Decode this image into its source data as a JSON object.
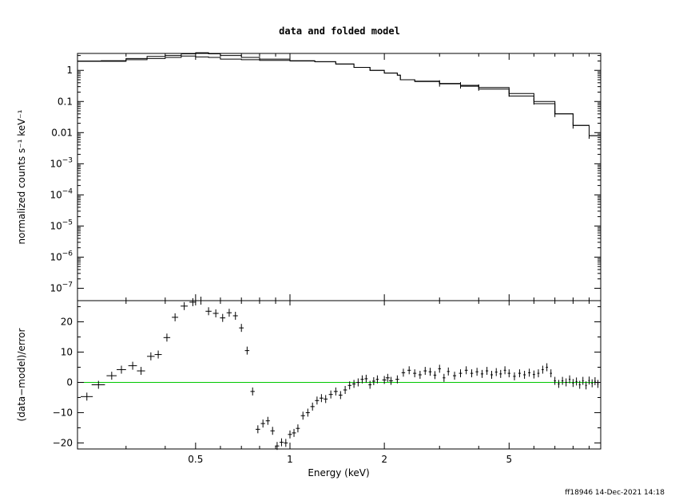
{
  "chart_data": [
    {
      "type": "line",
      "panel": "top",
      "title": "data and folded model",
      "ylabel": "normalized counts s⁻¹ keV⁻¹",
      "yscale": "log",
      "xscale": "log",
      "xlim": [
        0.21,
        9.8
      ],
      "ylim": [
        4e-08,
        3.5
      ],
      "ytick_labels": [
        {
          "value": 1,
          "label": "1"
        },
        {
          "value": 0.1,
          "label": "0.1"
        },
        {
          "value": 0.01,
          "label": "0.01"
        },
        {
          "value": 0.001,
          "base": "10",
          "exp": "−3"
        },
        {
          "value": 0.0001,
          "base": "10",
          "exp": "−4"
        },
        {
          "value": 1e-05,
          "base": "10",
          "exp": "−5"
        },
        {
          "value": 1e-06,
          "base": "10",
          "exp": "−6"
        },
        {
          "value": 1e-07,
          "base": "10",
          "exp": "−7"
        }
      ],
      "series": [
        {
          "x": [
            0.21,
            0.25,
            0.3,
            0.35,
            0.4,
            0.45,
            0.5,
            0.55,
            0.6,
            0.7,
            0.8,
            1.0,
            1.2,
            1.4,
            1.6,
            1.8,
            2.0,
            2.2,
            2.25,
            2.5,
            3.0,
            3.5,
            4.0,
            5.0,
            6.0,
            7.0,
            8.0,
            9.0,
            9.8
          ],
          "y": [
            1.95,
            1.95,
            2.2,
            2.4,
            2.6,
            2.9,
            2.7,
            2.6,
            2.3,
            2.2,
            2.1,
            2.0,
            1.9,
            1.6,
            1.25,
            1.0,
            0.82,
            0.7,
            0.5,
            0.44,
            0.37,
            0.31,
            0.25,
            0.15,
            0.085,
            0.04,
            0.017,
            0.008,
            0.0045
          ]
        },
        {
          "x": [
            0.21,
            0.25,
            0.3,
            0.35,
            0.4,
            0.45,
            0.5,
            0.55,
            0.6,
            0.7,
            0.8,
            1.0,
            1.2,
            1.4,
            1.6,
            1.8,
            2.0,
            2.2,
            2.25,
            2.5,
            3.0,
            3.5,
            4.0,
            5.0,
            6.0,
            7.0,
            8.0,
            9.0,
            9.8
          ],
          "y": [
            2.0,
            2.05,
            2.4,
            2.8,
            3.0,
            3.4,
            3.7,
            3.4,
            3.0,
            2.6,
            2.3,
            2.05,
            1.9,
            1.6,
            1.25,
            1.0,
            0.82,
            0.7,
            0.5,
            0.45,
            0.38,
            0.33,
            0.28,
            0.18,
            0.1,
            0.04,
            0.017,
            0.008,
            0.004
          ]
        }
      ]
    },
    {
      "type": "scatter",
      "panel": "bottom",
      "xlabel": "Energy (keV)",
      "ylabel": "(data−model)/error",
      "xscale": "log",
      "xlim": [
        0.21,
        9.8
      ],
      "ylim": [
        -22,
        27
      ],
      "x_ticks": [
        {
          "value": 0.5,
          "label": "0.5"
        },
        {
          "value": 1,
          "label": "1"
        },
        {
          "value": 2,
          "label": "2"
        },
        {
          "value": 5,
          "label": "5"
        }
      ],
      "y_ticks": [
        {
          "value": 20,
          "label": "20"
        },
        {
          "value": 10,
          "label": "10"
        },
        {
          "value": 0,
          "label": "0"
        },
        {
          "value": -10,
          "label": "−10"
        },
        {
          "value": -20,
          "label": "−20"
        }
      ],
      "reference_line": 0,
      "points": [
        {
          "x": 0.225,
          "y": -4.7,
          "xe": 0.01
        },
        {
          "x": 0.245,
          "y": -0.8,
          "xe": 0.012
        },
        {
          "x": 0.27,
          "y": 2.2,
          "xe": 0.01
        },
        {
          "x": 0.29,
          "y": 4.2,
          "xe": 0.01
        },
        {
          "x": 0.315,
          "y": 5.5,
          "xe": 0.01
        },
        {
          "x": 0.335,
          "y": 3.8,
          "xe": 0.01
        },
        {
          "x": 0.36,
          "y": 8.6,
          "xe": 0.01
        },
        {
          "x": 0.38,
          "y": 9.2,
          "xe": 0.01
        },
        {
          "x": 0.405,
          "y": 14.8,
          "xe": 0.01
        },
        {
          "x": 0.43,
          "y": 21.5,
          "xe": 0.01
        },
        {
          "x": 0.46,
          "y": 25.2,
          "xe": 0.012
        },
        {
          "x": 0.49,
          "y": 26.5,
          "xe": 0.012
        },
        {
          "x": 0.52,
          "y": 27.0,
          "xe": 0.012
        },
        {
          "x": 0.55,
          "y": 23.5,
          "xe": 0.012
        },
        {
          "x": 0.58,
          "y": 22.8,
          "xe": 0.012
        },
        {
          "x": 0.61,
          "y": 21.3,
          "xe": 0.012
        },
        {
          "x": 0.64,
          "y": 23.0,
          "xe": 0.012
        },
        {
          "x": 0.67,
          "y": 22.0,
          "xe": 0.012
        },
        {
          "x": 0.7,
          "y": 18.0,
          "xe": 0.012
        },
        {
          "x": 0.73,
          "y": 10.5,
          "xe": 0.012
        },
        {
          "x": 0.76,
          "y": -3.0,
          "xe": 0.012
        },
        {
          "x": 0.79,
          "y": -15.5,
          "xe": 0.013
        },
        {
          "x": 0.82,
          "y": -13.6,
          "xe": 0.013
        },
        {
          "x": 0.85,
          "y": -12.7,
          "xe": 0.013
        },
        {
          "x": 0.88,
          "y": -16.0,
          "xe": 0.014
        },
        {
          "x": 0.91,
          "y": -21.0,
          "xe": 0.014
        },
        {
          "x": 0.94,
          "y": -19.8,
          "xe": 0.014
        },
        {
          "x": 0.97,
          "y": -20.0,
          "xe": 0.014
        },
        {
          "x": 1.0,
          "y": -17.2,
          "xe": 0.015
        },
        {
          "x": 1.03,
          "y": -16.7,
          "xe": 0.015
        },
        {
          "x": 1.06,
          "y": -15.2,
          "xe": 0.015
        },
        {
          "x": 1.1,
          "y": -11.0,
          "xe": 0.017
        },
        {
          "x": 1.14,
          "y": -10.0,
          "xe": 0.017
        },
        {
          "x": 1.18,
          "y": -8.0,
          "xe": 0.018
        },
        {
          "x": 1.22,
          "y": -6.0,
          "xe": 0.018
        },
        {
          "x": 1.26,
          "y": -5.2,
          "xe": 0.018
        },
        {
          "x": 1.3,
          "y": -5.5,
          "xe": 0.019
        },
        {
          "x": 1.35,
          "y": -4.0,
          "xe": 0.02
        },
        {
          "x": 1.4,
          "y": -3.0,
          "xe": 0.02
        },
        {
          "x": 1.45,
          "y": -4.2,
          "xe": 0.02
        },
        {
          "x": 1.5,
          "y": -2.5,
          "xe": 0.02
        },
        {
          "x": 1.55,
          "y": -1.0,
          "xe": 0.02
        },
        {
          "x": 1.6,
          "y": -0.5,
          "xe": 0.02
        },
        {
          "x": 1.65,
          "y": 0.0,
          "xe": 0.02
        },
        {
          "x": 1.7,
          "y": 1.0,
          "xe": 0.02
        },
        {
          "x": 1.75,
          "y": 1.2,
          "xe": 0.02
        },
        {
          "x": 1.8,
          "y": -0.8,
          "xe": 0.02
        },
        {
          "x": 1.85,
          "y": 0.4,
          "xe": 0.02
        },
        {
          "x": 1.9,
          "y": 1.0,
          "xe": 0.02
        },
        {
          "x": 2.0,
          "y": 0.8,
          "xe": 0.03
        },
        {
          "x": 2.05,
          "y": 1.5,
          "xe": 0.03
        },
        {
          "x": 2.1,
          "y": 0.5,
          "xe": 0.03
        },
        {
          "x": 2.2,
          "y": 1.0,
          "xe": 0.03
        },
        {
          "x": 2.3,
          "y": 3.2,
          "xe": 0.03
        },
        {
          "x": 2.4,
          "y": 4.0,
          "xe": 0.03
        },
        {
          "x": 2.5,
          "y": 3.0,
          "xe": 0.03
        },
        {
          "x": 2.6,
          "y": 2.5,
          "xe": 0.03
        },
        {
          "x": 2.7,
          "y": 3.8,
          "xe": 0.03
        },
        {
          "x": 2.8,
          "y": 3.5,
          "xe": 0.03
        },
        {
          "x": 2.9,
          "y": 2.4,
          "xe": 0.03
        },
        {
          "x": 3.0,
          "y": 4.5,
          "xe": 0.03
        },
        {
          "x": 3.1,
          "y": 1.5,
          "xe": 0.03
        },
        {
          "x": 3.2,
          "y": 3.6,
          "xe": 0.03
        },
        {
          "x": 3.35,
          "y": 2.2,
          "xe": 0.04
        },
        {
          "x": 3.5,
          "y": 3.0,
          "xe": 0.04
        },
        {
          "x": 3.65,
          "y": 4.0,
          "xe": 0.04
        },
        {
          "x": 3.8,
          "y": 3.0,
          "xe": 0.04
        },
        {
          "x": 3.95,
          "y": 3.5,
          "xe": 0.04
        },
        {
          "x": 4.1,
          "y": 2.8,
          "xe": 0.04
        },
        {
          "x": 4.25,
          "y": 3.8,
          "xe": 0.04
        },
        {
          "x": 4.4,
          "y": 2.5,
          "xe": 0.04
        },
        {
          "x": 4.55,
          "y": 3.4,
          "xe": 0.04
        },
        {
          "x": 4.7,
          "y": 2.8,
          "xe": 0.04
        },
        {
          "x": 4.85,
          "y": 4.0,
          "xe": 0.04
        },
        {
          "x": 5.0,
          "y": 3.0,
          "xe": 0.05
        },
        {
          "x": 5.2,
          "y": 2.0,
          "xe": 0.05
        },
        {
          "x": 5.4,
          "y": 3.0,
          "xe": 0.05
        },
        {
          "x": 5.6,
          "y": 2.5,
          "xe": 0.05
        },
        {
          "x": 5.8,
          "y": 3.2,
          "xe": 0.05
        },
        {
          "x": 6.0,
          "y": 2.6,
          "xe": 0.05
        },
        {
          "x": 6.2,
          "y": 3.0,
          "xe": 0.05
        },
        {
          "x": 6.4,
          "y": 4.2,
          "xe": 0.05
        },
        {
          "x": 6.6,
          "y": 5.0,
          "xe": 0.05
        },
        {
          "x": 6.8,
          "y": 3.0,
          "xe": 0.05
        },
        {
          "x": 7.0,
          "y": 0.5,
          "xe": 0.05
        },
        {
          "x": 7.2,
          "y": -0.5,
          "xe": 0.05
        },
        {
          "x": 7.4,
          "y": 0.5,
          "xe": 0.05
        },
        {
          "x": 7.6,
          "y": 0.0,
          "xe": 0.05
        },
        {
          "x": 7.8,
          "y": 1.0,
          "xe": 0.05
        },
        {
          "x": 8.0,
          "y": -0.2,
          "xe": 0.05
        },
        {
          "x": 8.2,
          "y": 0.3,
          "xe": 0.05
        },
        {
          "x": 8.4,
          "y": -0.8,
          "xe": 0.05
        },
        {
          "x": 8.6,
          "y": 0.5,
          "xe": 0.05
        },
        {
          "x": 8.8,
          "y": -1.0,
          "xe": 0.05
        },
        {
          "x": 9.0,
          "y": 0.6,
          "xe": 0.05
        },
        {
          "x": 9.2,
          "y": -0.3,
          "xe": 0.05
        },
        {
          "x": 9.4,
          "y": 0.4,
          "xe": 0.05
        },
        {
          "x": 9.6,
          "y": -0.5,
          "xe": 0.05
        }
      ]
    }
  ],
  "colors": {
    "axes": "#000000",
    "data": "#000000",
    "reference_line": "#00c800"
  },
  "footer": {
    "stamp": "ff18946 14-Dec-2021 14:18"
  }
}
